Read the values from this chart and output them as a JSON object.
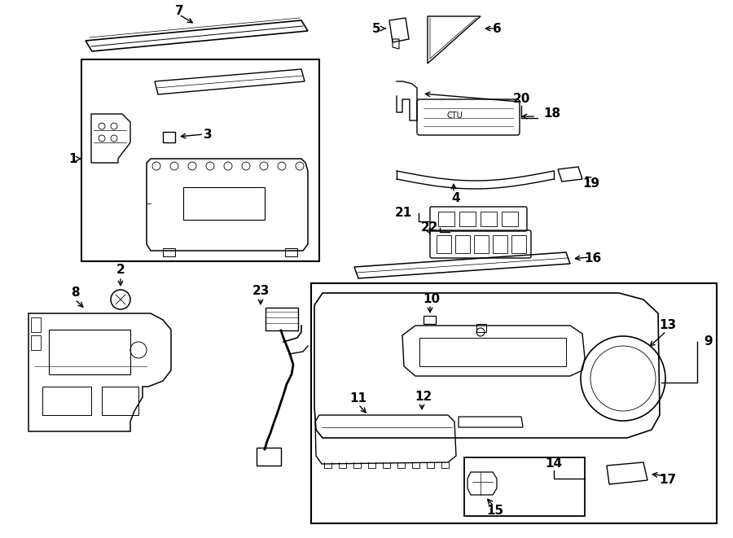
{
  "bg_color": "#ffffff",
  "lc": "#000000",
  "fig_w": 9.0,
  "fig_h": 6.61,
  "dpi": 100
}
